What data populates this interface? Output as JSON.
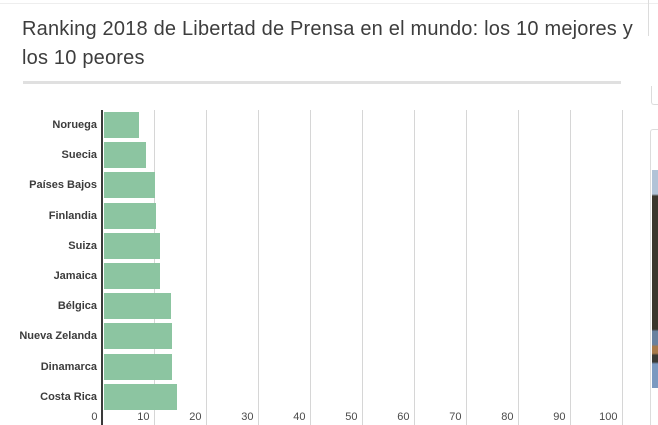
{
  "page": {
    "title_lines": [
      "Ranking 2018 de Libertad de Prensa en el mundo: los 10 mejores y",
      "los 10 peores"
    ]
  },
  "chart_data": {
    "type": "bar",
    "orientation": "horizontal",
    "title": "Ranking 2018 de Libertad de Prensa en el mundo: los 10 mejores y los 10 peores",
    "categories": [
      "Noruega",
      "Suecia",
      "Países Bajos",
      "Finlandia",
      "Suiza",
      "Jamaica",
      "Bélgica",
      "Nueva Zelanda",
      "Dinamarca",
      "Costa Rica"
    ],
    "values": [
      7.0,
      8.4,
      10.0,
      10.2,
      11.1,
      11.1,
      13.2,
      13.3,
      13.3,
      14.4
    ],
    "xlabel": "",
    "ylabel": "",
    "xlim": [
      0,
      100
    ],
    "xticks": [
      0,
      10,
      20,
      30,
      40,
      50,
      60,
      70,
      80,
      90,
      100
    ],
    "grid": "vertical",
    "legend": "none",
    "bar_color": "#8cc5a1"
  },
  "colors": {
    "background": "#ffffff",
    "bar": "#8cc5a1",
    "title": "#3d3d3d",
    "category_label": "#3c3c3c",
    "tick_label": "#4a4a4a",
    "gridline": "#d6d6d6",
    "axis_line": "#3a3a3a",
    "divider": "#e0e0e0",
    "card_border": "#dcdcdc",
    "photo_top": "#b2c3d7",
    "photo_dark": "#3a362c",
    "photo_blue_band": "#69819f",
    "photo_orange": "#a97a4a",
    "photo_dark2": "#3a3a35",
    "photo_bottom": "#7b99c0"
  }
}
